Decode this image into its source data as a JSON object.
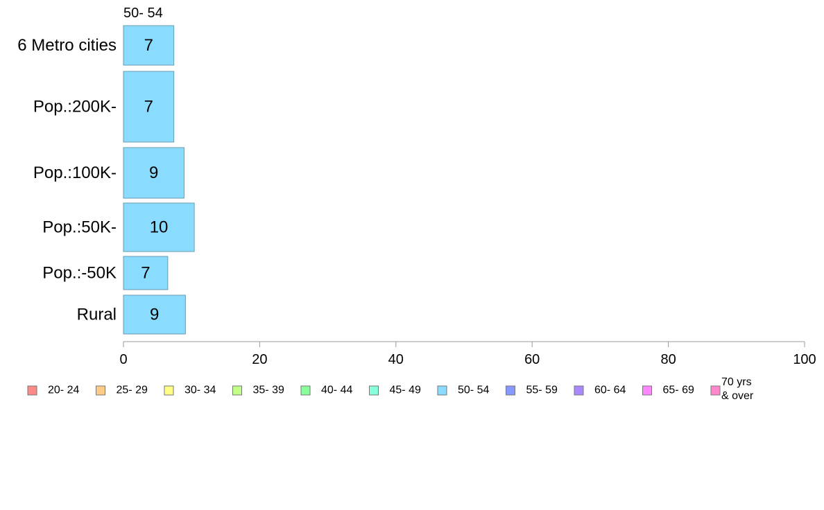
{
  "chart_data": {
    "type": "bar",
    "orientation": "horizontal",
    "series_label": "50- 54",
    "categories": [
      "6 Metro cities",
      "Pop.:200K-",
      "Pop.:100K-",
      "Pop.:50K-",
      "Pop.:-50K",
      "Rural"
    ],
    "values": [
      7.4,
      7.4,
      8.9,
      10.4,
      6.5,
      9.1
    ],
    "data_labels": [
      "7",
      "7",
      "9",
      "10",
      "7",
      "9"
    ],
    "bar_color": "#8adcff",
    "xlim": [
      0,
      100
    ],
    "xticks": [
      0,
      20,
      40,
      60,
      80,
      100
    ],
    "xtick_labels": [
      "0",
      "20",
      "40",
      "60",
      "80",
      "100"
    ],
    "legend": [
      {
        "label": "20- 24",
        "color": "#ff8a8a"
      },
      {
        "label": "25- 29",
        "color": "#ffcc88"
      },
      {
        "label": "30- 34",
        "color": "#ffff88"
      },
      {
        "label": "35- 39",
        "color": "#c2ff88"
      },
      {
        "label": "40- 44",
        "color": "#88ff99"
      },
      {
        "label": "45- 49",
        "color": "#88ffdd"
      },
      {
        "label": "50- 54",
        "color": "#8adcff"
      },
      {
        "label": "55- 59",
        "color": "#8899ff"
      },
      {
        "label": "60- 64",
        "color": "#aa88ff"
      },
      {
        "label": "65- 69",
        "color": "#ff88ff"
      },
      {
        "label": "70 yrs\n& over",
        "color": "#ff88cc"
      }
    ]
  }
}
